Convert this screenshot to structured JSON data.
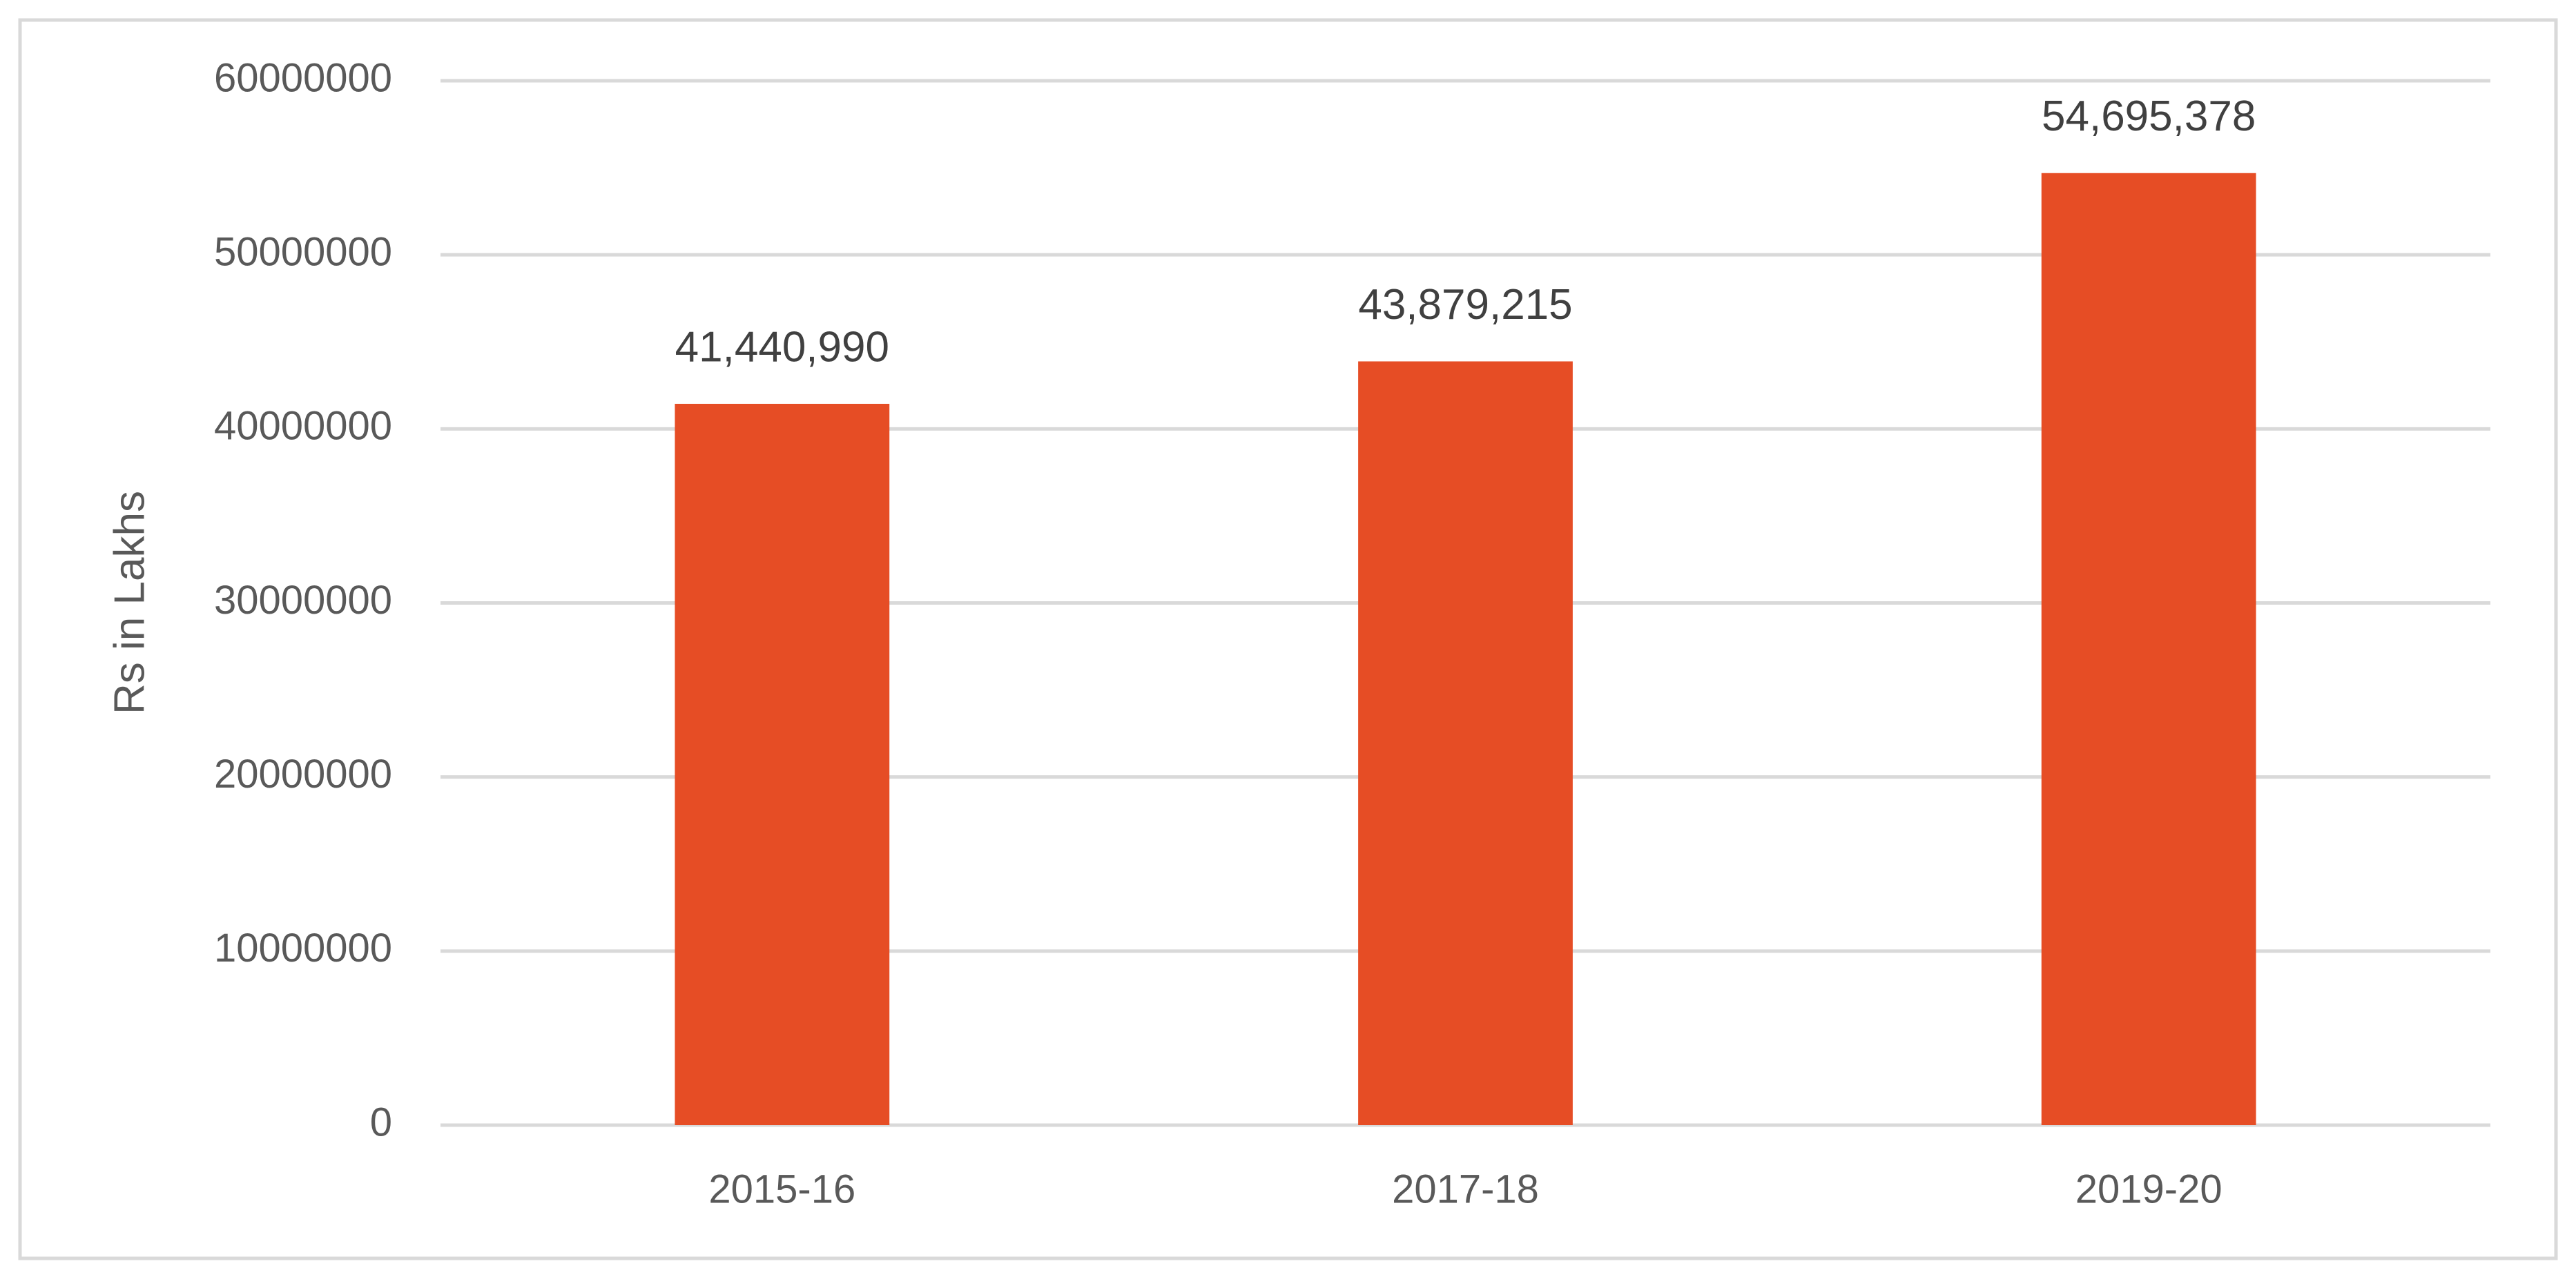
{
  "chart_data": {
    "type": "bar",
    "y_label": "Rs in Lakhs",
    "categories": [
      "2015-16",
      "2017-18",
      "2019-20"
    ],
    "values": [
      41440990,
      43879215,
      54695378
    ],
    "value_labels": [
      "41,440,990",
      "43,879,215",
      "54,695,378"
    ],
    "color": "#e64d25",
    "ylim": [
      0,
      60000000
    ],
    "yticks": [
      0,
      10000000,
      20000000,
      30000000,
      40000000,
      50000000,
      60000000
    ],
    "grid": true
  }
}
